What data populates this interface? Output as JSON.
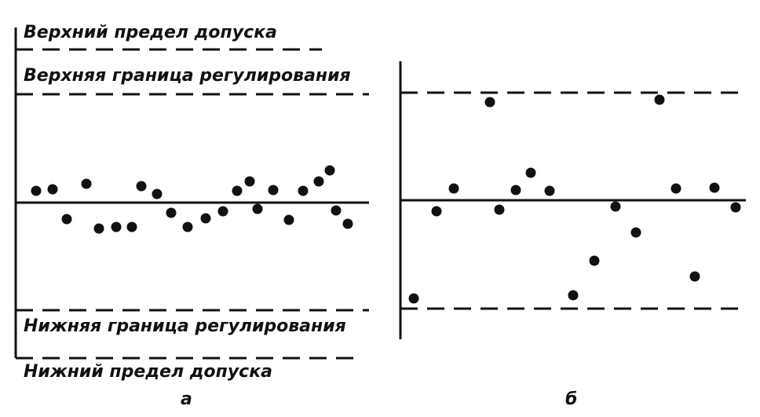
{
  "labels": {
    "upper_tolerance": "Верхний предел допуска",
    "upper_control": "Верхняя граница регулирования",
    "lower_control": "Нижняя граница регулирования",
    "lower_tolerance": "Нижний предел допуска"
  },
  "panels": [
    "а",
    "б"
  ]
}
